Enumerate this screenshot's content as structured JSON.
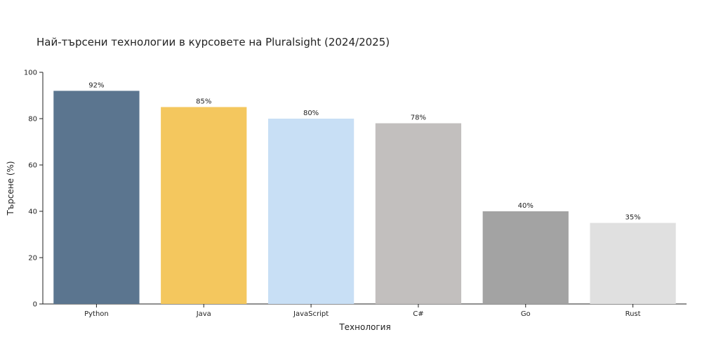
{
  "chart_data": {
    "type": "bar",
    "title": "Най-търсени технологии в курсовете на Pluralsight (2024/2025)",
    "xlabel": "Технология",
    "ylabel": "Търсене (%)",
    "categories": [
      "Python",
      "Java",
      "JavaScript",
      "C#",
      "Go",
      "Rust"
    ],
    "values": [
      92,
      85,
      80,
      78,
      40,
      35
    ],
    "value_labels": [
      "92%",
      "85%",
      "80%",
      "78%",
      "40%",
      "35%"
    ],
    "colors": [
      "#5b758f",
      "#f4c75e",
      "#c8dff5",
      "#c2bfbe",
      "#a3a3a3",
      "#e0e0e0"
    ],
    "ylim": [
      0,
      100
    ],
    "yticks": [
      0,
      20,
      40,
      60,
      80,
      100
    ],
    "grid": false,
    "legend": false
  }
}
